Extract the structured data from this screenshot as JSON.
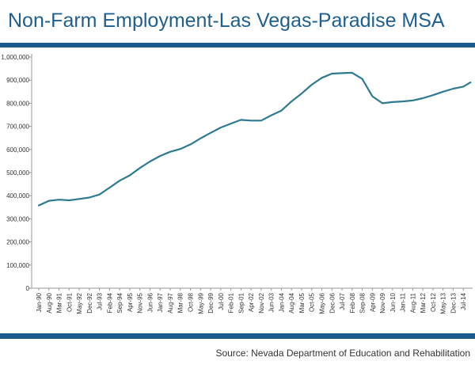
{
  "title": "Non-Farm Employment-Las Vegas-Paradise MSA",
  "source": "Source: Nevada Department of Education and Rehabilitation",
  "colors": {
    "line": "#2e7b8f",
    "rule": "#1b5a8c",
    "title": "#1f5f8e",
    "axis": "#9a9a9a"
  },
  "chart_data": {
    "type": "line",
    "title": "Non-Farm Employment-Las Vegas-Paradise MSA",
    "xlabel": "",
    "ylabel": "",
    "ylim": [
      0,
      1000000
    ],
    "yticks": [
      0,
      100000,
      200000,
      300000,
      400000,
      500000,
      600000,
      700000,
      800000,
      900000,
      1000000
    ],
    "ytick_labels": [
      "0",
      "100,000",
      "200,000",
      "300,000",
      "400,000",
      "500,000",
      "600,000",
      "700,000",
      "800,000",
      "900,000",
      "1,000,000"
    ],
    "x_tick_labels": [
      "Jan-90",
      "Aug-90",
      "Mar-91",
      "Oct-91",
      "May-92",
      "Dec-92",
      "Jul-93",
      "Feb-94",
      "Sep-94",
      "Apr-95",
      "Nov-95",
      "Jun-96",
      "Jan-97",
      "Aug-97",
      "Mar-98",
      "Oct-98",
      "May-99",
      "Dec-99",
      "Jul-00",
      "Feb-01",
      "Sep-01",
      "Apr-02",
      "Nov-02",
      "Jun-03",
      "Jan-04",
      "Aug-04",
      "Mar-05",
      "Oct-05",
      "May-06",
      "Dec-06",
      "Jul-07",
      "Feb-08",
      "Sep-08",
      "Apr-09",
      "Nov-09",
      "Jun-10",
      "Jan-11",
      "Aug-11",
      "Mar-12",
      "Oct-12",
      "May-13",
      "Dec-13",
      "Jul-14"
    ],
    "grid": false,
    "series": [
      {
        "x": [
          "Jan-90",
          "Aug-90",
          "Mar-91",
          "Oct-91",
          "May-92",
          "Dec-92",
          "Jul-93",
          "Feb-94",
          "Sep-94",
          "Apr-95",
          "Nov-95",
          "Jun-96",
          "Jan-97",
          "Aug-97",
          "Mar-98",
          "Oct-98",
          "May-99",
          "Dec-99",
          "Jul-00",
          "Feb-01",
          "Sep-01",
          "Apr-02",
          "Nov-02",
          "Jun-03",
          "Jan-04",
          "Aug-04",
          "Mar-05",
          "Oct-05",
          "May-06",
          "Dec-06",
          "Jul-07",
          "Feb-08",
          "Sep-08",
          "Apr-09",
          "Nov-09",
          "Jun-10",
          "Jan-11",
          "Aug-11",
          "Mar-12",
          "Oct-12",
          "May-13",
          "Dec-13",
          "Jul-14",
          "Dec-14"
        ],
        "values": [
          358000,
          378000,
          383000,
          380000,
          386000,
          392000,
          405000,
          435000,
          465000,
          488000,
          520000,
          548000,
          572000,
          590000,
          602000,
          622000,
          648000,
          672000,
          695000,
          712000,
          728000,
          725000,
          725000,
          748000,
          768000,
          808000,
          842000,
          880000,
          910000,
          928000,
          930000,
          932000,
          905000,
          830000,
          800000,
          805000,
          808000,
          812000,
          822000,
          835000,
          850000,
          863000,
          872000,
          890000
        ]
      }
    ]
  }
}
